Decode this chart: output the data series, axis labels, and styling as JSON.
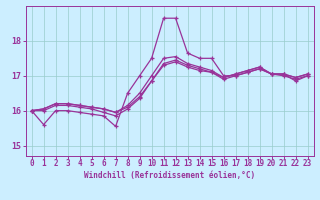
{
  "xlabel": "Windchill (Refroidissement éolien,°C)",
  "xlim": [
    -0.5,
    23.5
  ],
  "ylim": [
    14.7,
    19.0
  ],
  "xticks": [
    0,
    1,
    2,
    3,
    4,
    5,
    6,
    7,
    8,
    9,
    10,
    11,
    12,
    13,
    14,
    15,
    16,
    17,
    18,
    19,
    20,
    21,
    22,
    23
  ],
  "yticks": [
    15,
    16,
    17,
    18
  ],
  "background_color": "#cceeff",
  "grid_color": "#99cccc",
  "line_color": "#993399",
  "lines": [
    [
      16.0,
      15.6,
      16.0,
      16.0,
      15.95,
      15.9,
      15.85,
      15.55,
      16.5,
      17.0,
      17.5,
      18.65,
      18.65,
      17.65,
      17.5,
      17.5,
      17.0,
      17.0,
      17.1,
      17.2,
      17.05,
      17.05,
      16.85,
      17.0
    ],
    [
      16.0,
      16.0,
      16.15,
      16.15,
      16.1,
      16.05,
      15.95,
      15.85,
      16.05,
      16.35,
      16.85,
      17.35,
      17.45,
      17.3,
      17.2,
      17.1,
      16.9,
      17.0,
      17.1,
      17.2,
      17.05,
      17.0,
      16.9,
      17.0
    ],
    [
      16.0,
      16.05,
      16.2,
      16.2,
      16.15,
      16.1,
      16.05,
      15.95,
      16.1,
      16.4,
      16.85,
      17.3,
      17.4,
      17.25,
      17.15,
      17.1,
      16.95,
      17.05,
      17.15,
      17.25,
      17.05,
      17.05,
      16.95,
      17.05
    ],
    [
      16.0,
      16.05,
      16.2,
      16.2,
      16.15,
      16.1,
      16.05,
      15.95,
      16.15,
      16.5,
      17.0,
      17.5,
      17.55,
      17.35,
      17.25,
      17.15,
      16.95,
      17.05,
      17.15,
      17.25,
      17.05,
      17.05,
      16.95,
      17.05
    ]
  ],
  "tick_fontsize": 5.5,
  "label_fontsize": 5.5,
  "ylabel_fontsize": 6
}
